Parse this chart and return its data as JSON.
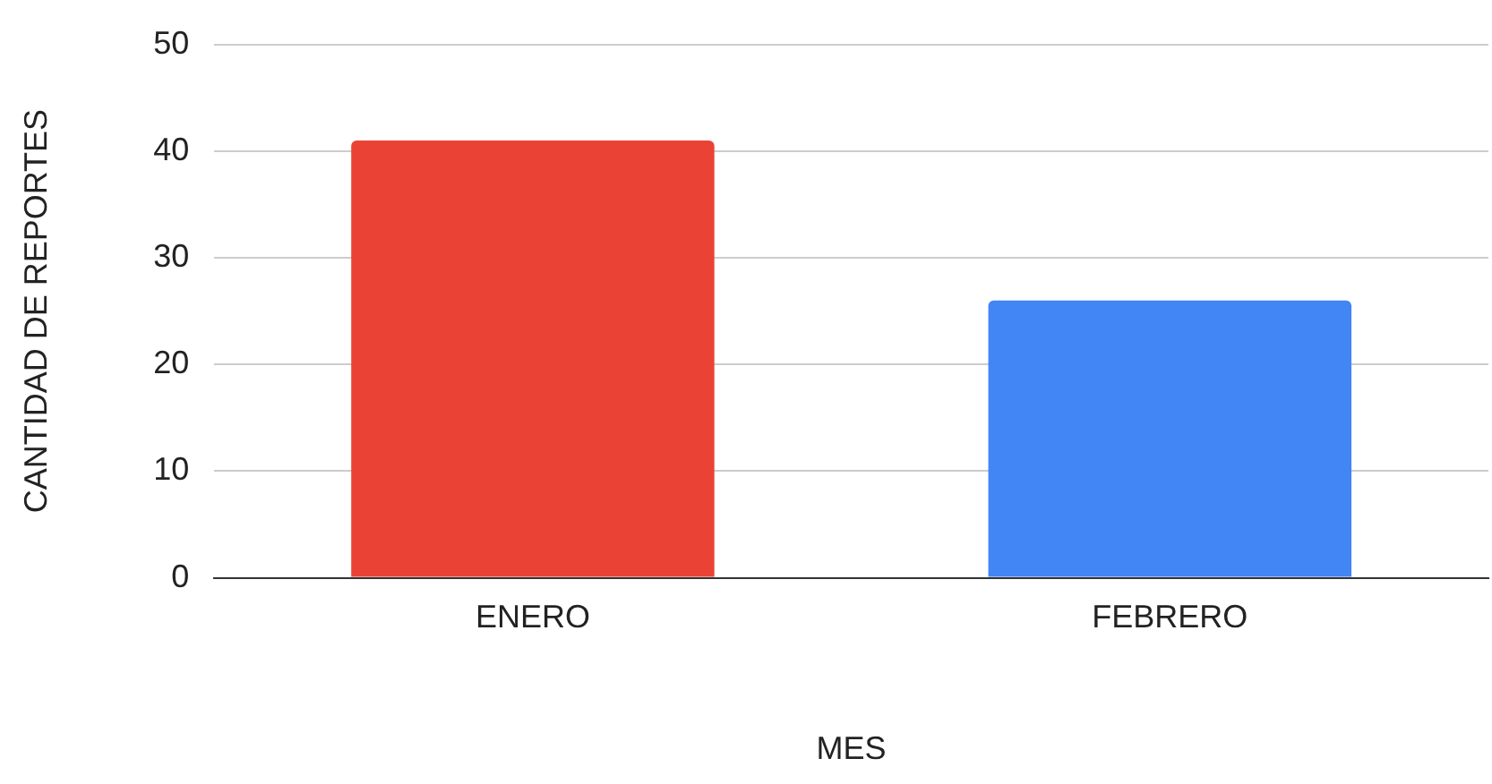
{
  "chart_data": {
    "type": "bar",
    "xlabel": "MES",
    "ylabel": "CANTIDAD DE REPORTES",
    "categories": [
      "ENERO",
      "FEBRERO"
    ],
    "values": [
      41,
      26
    ],
    "colors": [
      "#ea4335",
      "#4285f4"
    ],
    "ylim": [
      0,
      50
    ],
    "yticks": [
      0,
      10,
      20,
      30,
      40,
      50
    ],
    "grid": "y",
    "legend": false
  }
}
